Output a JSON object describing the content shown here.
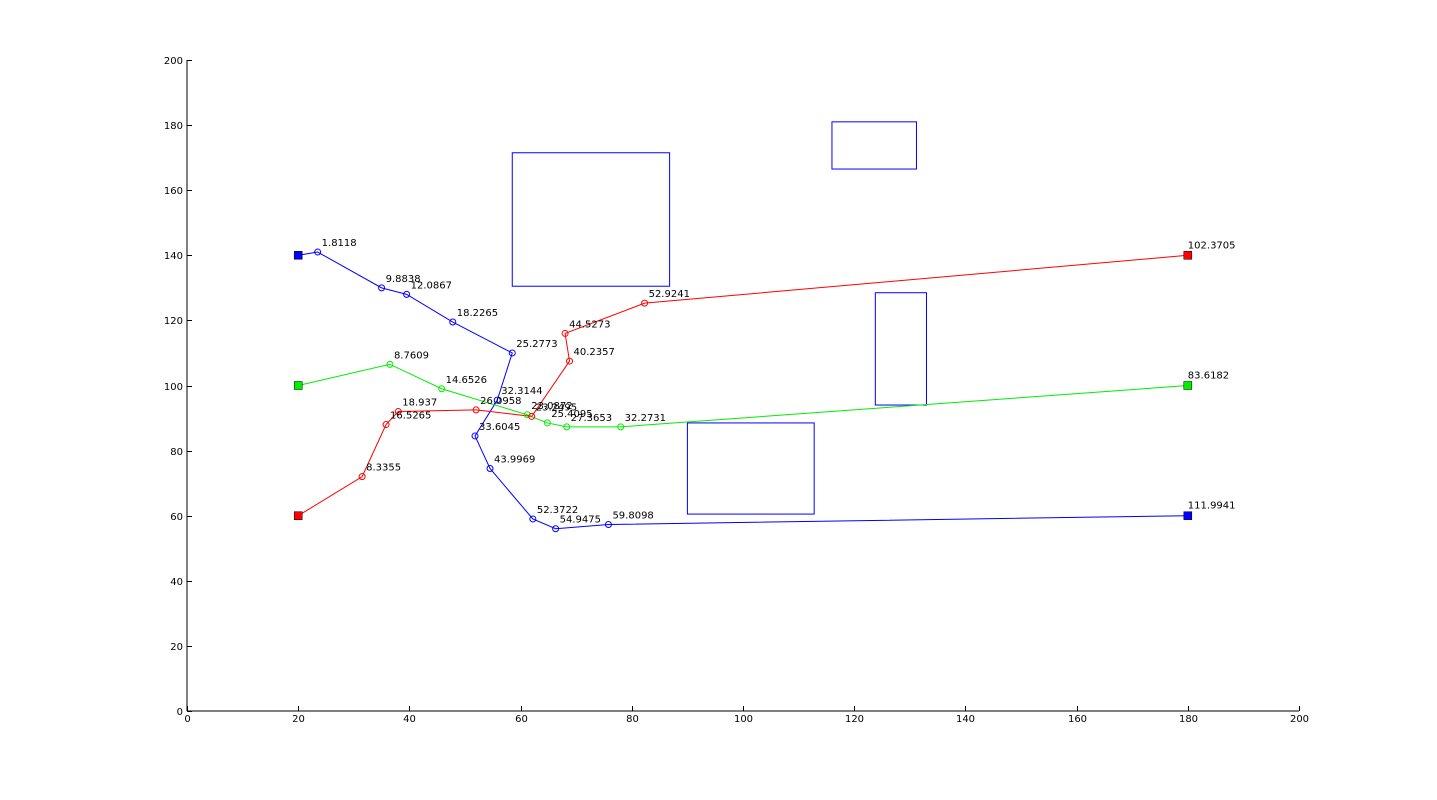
{
  "chart_data": {
    "type": "line",
    "xlim": [
      0,
      200
    ],
    "ylim": [
      0,
      200
    ],
    "x_ticks": [
      "0",
      "20",
      "40",
      "60",
      "80",
      "100",
      "120",
      "140",
      "160",
      "180",
      "200"
    ],
    "y_ticks": [
      "0",
      "20",
      "40",
      "60",
      "80",
      "100",
      "120",
      "140",
      "160",
      "180",
      "200"
    ],
    "grid": false,
    "legend": "none",
    "series": [
      {
        "color": "#0000ff",
        "start": [
          20,
          140
        ],
        "end": [
          180,
          60
        ],
        "points": [
          {
            "x": 23.5,
            "y": 141,
            "label": "1.8118"
          },
          {
            "x": 35,
            "y": 130,
            "label": "9.8838"
          },
          {
            "x": 39.5,
            "y": 128,
            "label": "12.0867"
          },
          {
            "x": 47.8,
            "y": 119.5,
            "label": "18.2265"
          },
          {
            "x": 58.5,
            "y": 110,
            "label": "25.2773"
          },
          {
            "x": 55.8,
            "y": 95.5,
            "label": "32.3144"
          },
          {
            "x": 51.8,
            "y": 84.5,
            "label": "33.6045"
          },
          {
            "x": 54.5,
            "y": 74.5,
            "label": "43.9969"
          },
          {
            "x": 62.2,
            "y": 59,
            "label": "52.3722"
          },
          {
            "x": 66.3,
            "y": 56,
            "label": "54.9475"
          },
          {
            "x": 75.8,
            "y": 57.3,
            "label": "59.8098"
          }
        ],
        "end_label": "111.9941"
      },
      {
        "color": "#00ee00",
        "start": [
          20,
          100
        ],
        "end": [
          180,
          100
        ],
        "points": [
          {
            "x": 36.5,
            "y": 106.5,
            "label": "8.7609"
          },
          {
            "x": 45.8,
            "y": 99,
            "label": "14.6526"
          },
          {
            "x": 61.2,
            "y": 91,
            "label": "23.0872"
          },
          {
            "x": 64.8,
            "y": 88.5,
            "label": "25.4095"
          },
          {
            "x": 68.3,
            "y": 87.3,
            "label": "27.3653"
          },
          {
            "x": 78,
            "y": 87.3,
            "label": "32.2731"
          }
        ],
        "end_label": "83.6182"
      },
      {
        "color": "#ff0000",
        "start": [
          20,
          60
        ],
        "end": [
          180,
          140
        ],
        "points": [
          {
            "x": 31.5,
            "y": 72,
            "label": "8.3355"
          },
          {
            "x": 35.8,
            "y": 88,
            "label": "16.5265"
          },
          {
            "x": 38,
            "y": 92,
            "label": "18.937"
          },
          {
            "x": 52,
            "y": 92.5,
            "label": "26.0958"
          },
          {
            "x": 62,
            "y": 90.5,
            "label": "23.2495"
          },
          {
            "x": 68.8,
            "y": 107.5,
            "label": "40.2357"
          },
          {
            "x": 68,
            "y": 116,
            "label": "44.5273"
          },
          {
            "x": 82.3,
            "y": 125.3,
            "label": "52.9241"
          }
        ],
        "end_label": "102.3705"
      }
    ],
    "endpoint_markers": [
      {
        "x": 20,
        "y": 140,
        "color": "#0000ff"
      },
      {
        "x": 180,
        "y": 60,
        "color": "#0000ff"
      },
      {
        "x": 20,
        "y": 100,
        "color": "#00ee00"
      },
      {
        "x": 180,
        "y": 100,
        "color": "#00ee00"
      },
      {
        "x": 20,
        "y": 60,
        "color": "#ff0000"
      },
      {
        "x": 180,
        "y": 140,
        "color": "#ff0000"
      }
    ],
    "obstacles": [
      {
        "x": [
          58.5,
          86.8
        ],
        "y": [
          130.5,
          171.5
        ]
      },
      {
        "x": [
          90,
          112.8
        ],
        "y": [
          60.5,
          88.5
        ]
      },
      {
        "x": [
          116,
          131.2
        ],
        "y": [
          166.5,
          181
        ]
      },
      {
        "x": [
          123.8,
          133
        ],
        "y": [
          94,
          128.5
        ]
      }
    ],
    "obstacle_color": "#0000ff"
  }
}
